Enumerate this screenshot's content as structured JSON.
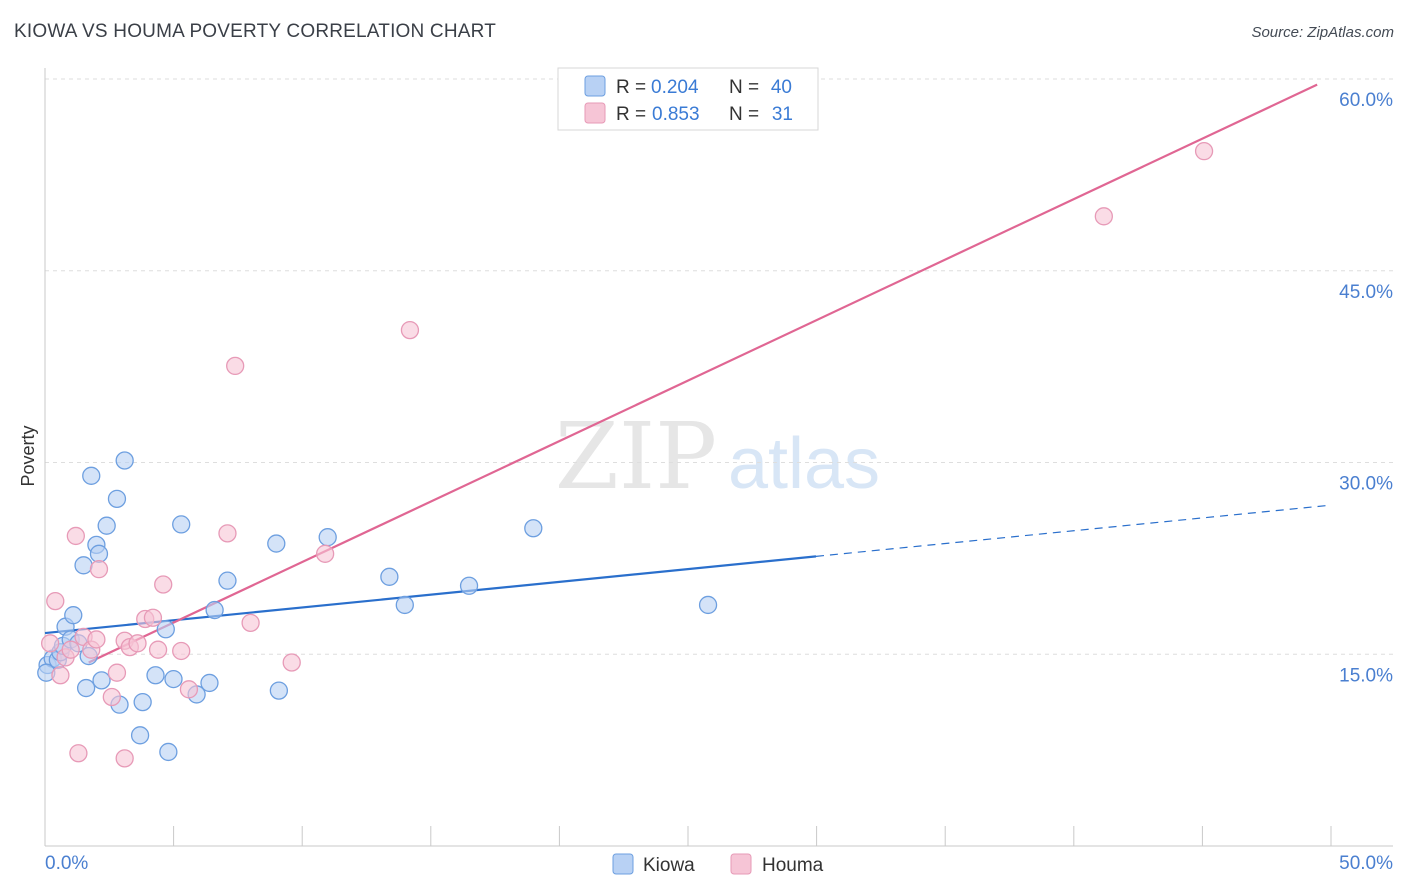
{
  "title": "KIOWA VS HOUMA POVERTY CORRELATION CHART",
  "source": "Source: ZipAtlas.com",
  "watermark": {
    "zip": "ZIP",
    "atlas": "atlas"
  },
  "chart_data": {
    "type": "scatter",
    "title": "KIOWA VS HOUMA POVERTY CORRELATION CHART",
    "xlabel": "",
    "ylabel": "Poverty",
    "xlim": [
      0,
      50
    ],
    "ylim": [
      0,
      60
    ],
    "x_tick_labels": [
      "0.0%",
      "50.0%"
    ],
    "y_ticks": [
      15,
      30,
      45,
      60
    ],
    "y_tick_labels": [
      "15.0%",
      "30.0%",
      "45.0%",
      "60.0%"
    ],
    "grid": true,
    "legend_position": "top-center",
    "stats": [
      {
        "name": "Kiowa",
        "r_label": "R =",
        "r": "0.204",
        "n_label": "N =",
        "n": "40"
      },
      {
        "name": "Houma",
        "r_label": "R =",
        "r": "0.853",
        "n_label": "N =",
        "n": "31"
      }
    ],
    "series": [
      {
        "name": "Kiowa",
        "color": "#6d9fe0",
        "fill": "#b8d1f4",
        "line_color": "#2a6fcc",
        "trend": {
          "x0": 0,
          "y0": 17.4,
          "x1": 30,
          "y1": 23.4,
          "x_end_dashed": 50,
          "y_end_dashed": 27.4
        },
        "points": [
          [
            0.1,
            14.9
          ],
          [
            0.3,
            15.4
          ],
          [
            0.5,
            15.3
          ],
          [
            0.6,
            15.9
          ],
          [
            0.7,
            16.4
          ],
          [
            0.8,
            17.9
          ],
          [
            1.0,
            16.9
          ],
          [
            1.1,
            18.8
          ],
          [
            1.3,
            16.6
          ],
          [
            1.5,
            22.7
          ],
          [
            1.6,
            13.1
          ],
          [
            1.7,
            15.6
          ],
          [
            1.8,
            29.7
          ],
          [
            2.0,
            24.3
          ],
          [
            2.1,
            23.6
          ],
          [
            2.2,
            13.7
          ],
          [
            2.4,
            25.8
          ],
          [
            2.8,
            27.9
          ],
          [
            2.9,
            11.8
          ],
          [
            3.1,
            30.9
          ],
          [
            3.7,
            9.4
          ],
          [
            3.8,
            12.0
          ],
          [
            4.3,
            14.1
          ],
          [
            4.7,
            17.7
          ],
          [
            4.8,
            8.1
          ],
          [
            5.0,
            13.8
          ],
          [
            5.3,
            25.9
          ],
          [
            5.9,
            12.6
          ],
          [
            6.4,
            13.5
          ],
          [
            6.6,
            19.2
          ],
          [
            7.1,
            21.5
          ],
          [
            9.0,
            24.4
          ],
          [
            9.1,
            12.9
          ],
          [
            11.0,
            24.9
          ],
          [
            13.4,
            21.8
          ],
          [
            14.0,
            19.6
          ],
          [
            16.5,
            21.1
          ],
          [
            19.0,
            25.6
          ],
          [
            25.8,
            19.6
          ],
          [
            0.05,
            14.3
          ]
        ]
      },
      {
        "name": "Houma",
        "color": "#e79ab7",
        "fill": "#f6c5d6",
        "line_color": "#e06693",
        "trend": {
          "x0": 1.7,
          "y0": 15.1,
          "x1": 49.5,
          "y1": 60.3
        },
        "points": [
          [
            0.2,
            16.6
          ],
          [
            0.4,
            19.9
          ],
          [
            0.6,
            14.1
          ],
          [
            0.8,
            15.5
          ],
          [
            1.0,
            16.1
          ],
          [
            1.2,
            25.0
          ],
          [
            1.3,
            8.0
          ],
          [
            1.5,
            17.1
          ],
          [
            1.8,
            16.1
          ],
          [
            2.0,
            16.9
          ],
          [
            2.1,
            22.4
          ],
          [
            2.6,
            12.4
          ],
          [
            2.8,
            14.3
          ],
          [
            3.1,
            16.8
          ],
          [
            3.1,
            7.6
          ],
          [
            3.3,
            16.3
          ],
          [
            3.6,
            16.6
          ],
          [
            3.9,
            18.5
          ],
          [
            4.2,
            18.6
          ],
          [
            4.4,
            16.1
          ],
          [
            4.6,
            21.2
          ],
          [
            5.3,
            16.0
          ],
          [
            5.6,
            13.0
          ],
          [
            7.1,
            25.2
          ],
          [
            7.4,
            38.3
          ],
          [
            8.0,
            18.2
          ],
          [
            9.6,
            15.1
          ],
          [
            10.9,
            23.6
          ],
          [
            14.2,
            41.1
          ],
          [
            41.2,
            50.0
          ],
          [
            45.1,
            55.1
          ]
        ]
      }
    ]
  }
}
